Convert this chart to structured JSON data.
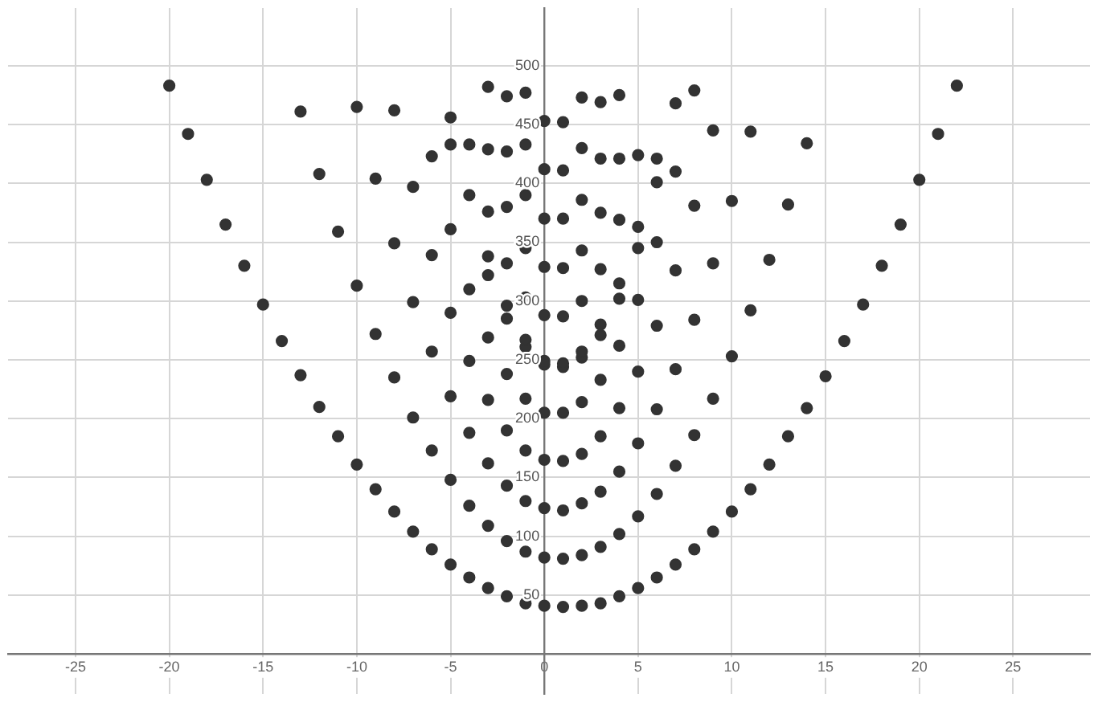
{
  "chart_data": {
    "type": "scatter",
    "xlim": [
      -28.6,
      29.1
    ],
    "ylim": [
      -34,
      549
    ],
    "xticks": [
      -25,
      -20,
      -15,
      -10,
      -5,
      0,
      5,
      10,
      15,
      20,
      25
    ],
    "yticks": [
      50,
      100,
      150,
      200,
      250,
      300,
      350,
      400,
      450,
      500
    ],
    "grid": true,
    "marker": "circle",
    "series": [
      {
        "color": "#333333",
        "x": [
          -20,
          -19,
          -18,
          -17,
          -16,
          -15,
          -14,
          -13,
          -13,
          -12,
          -12,
          -11,
          -11,
          -10,
          -10,
          -10,
          -9,
          -9,
          -9,
          -8,
          -8,
          -8,
          -8,
          -7,
          -7,
          -7,
          -7,
          -6,
          -6,
          -6,
          -6,
          -6,
          -5,
          -5,
          -5,
          -5,
          -5,
          -5,
          -5,
          -4,
          -4,
          -4,
          -4,
          -4,
          -4,
          -4,
          -3,
          -3,
          -3,
          -3,
          -3,
          -3,
          -3,
          -3,
          -3,
          -3,
          -2,
          -2,
          -2,
          -2,
          -2,
          -2,
          -2,
          -2,
          -2,
          -2,
          -2,
          -1,
          -1,
          -1,
          -1,
          -1,
          -1,
          -1,
          -1,
          -1,
          -1,
          -1,
          -1,
          0,
          0,
          0,
          0,
          0,
          0,
          0,
          0,
          0,
          0,
          0,
          0,
          1,
          1,
          1,
          1,
          1,
          1,
          1,
          1,
          1,
          1,
          1,
          1,
          2,
          2,
          2,
          2,
          2,
          2,
          2,
          2,
          2,
          2,
          2,
          2,
          3,
          3,
          3,
          3,
          3,
          3,
          3,
          3,
          3,
          3,
          3,
          4,
          4,
          4,
          4,
          4,
          4,
          4,
          4,
          4,
          4,
          5,
          5,
          5,
          5,
          5,
          5,
          5,
          5,
          6,
          6,
          6,
          6,
          6,
          6,
          6,
          7,
          7,
          7,
          7,
          7,
          7,
          8,
          8,
          8,
          8,
          8,
          9,
          9,
          9,
          9,
          10,
          10,
          10,
          11,
          11,
          11,
          12,
          12,
          13,
          13,
          14,
          14,
          15,
          16,
          17,
          18,
          19,
          20,
          21,
          22
        ],
        "values": [
          483,
          442,
          403,
          365,
          330,
          297,
          266,
          237,
          461,
          210,
          408,
          185,
          359,
          161,
          313,
          465,
          140,
          272,
          404,
          121,
          235,
          349,
          462,
          104,
          201,
          299,
          397,
          89,
          173,
          257,
          339,
          423,
          76,
          148,
          219,
          290,
          361,
          433,
          456,
          65,
          126,
          188,
          249,
          310,
          390,
          433,
          56,
          109,
          162,
          216,
          269,
          322,
          338,
          376,
          429,
          482,
          49,
          96,
          143,
          190,
          238,
          285,
          296,
          332,
          380,
          427,
          474,
          43,
          87,
          130,
          173,
          217,
          261,
          267,
          303,
          345,
          390,
          433,
          477,
          41,
          82,
          124,
          165,
          205,
          246,
          249,
          288,
          329,
          370,
          412,
          453,
          40,
          81,
          122,
          164,
          205,
          244,
          247,
          287,
          328,
          370,
          411,
          452,
          41,
          84,
          128,
          170,
          214,
          252,
          257,
          300,
          343,
          386,
          430,
          473,
          43,
          91,
          138,
          185,
          233,
          271,
          280,
          327,
          375,
          421,
          469,
          49,
          102,
          155,
          209,
          262,
          302,
          315,
          369,
          421,
          475,
          56,
          117,
          179,
          240,
          301,
          345,
          363,
          424,
          65,
          136,
          208,
          279,
          350,
          401,
          421,
          76,
          160,
          242,
          326,
          410,
          468,
          89,
          186,
          284,
          381,
          479,
          104,
          217,
          332,
          445,
          121,
          253,
          385,
          140,
          292,
          444,
          161,
          335,
          185,
          382,
          209,
          434,
          236,
          266,
          297,
          330,
          365,
          403,
          442,
          483
        ]
      }
    ]
  }
}
